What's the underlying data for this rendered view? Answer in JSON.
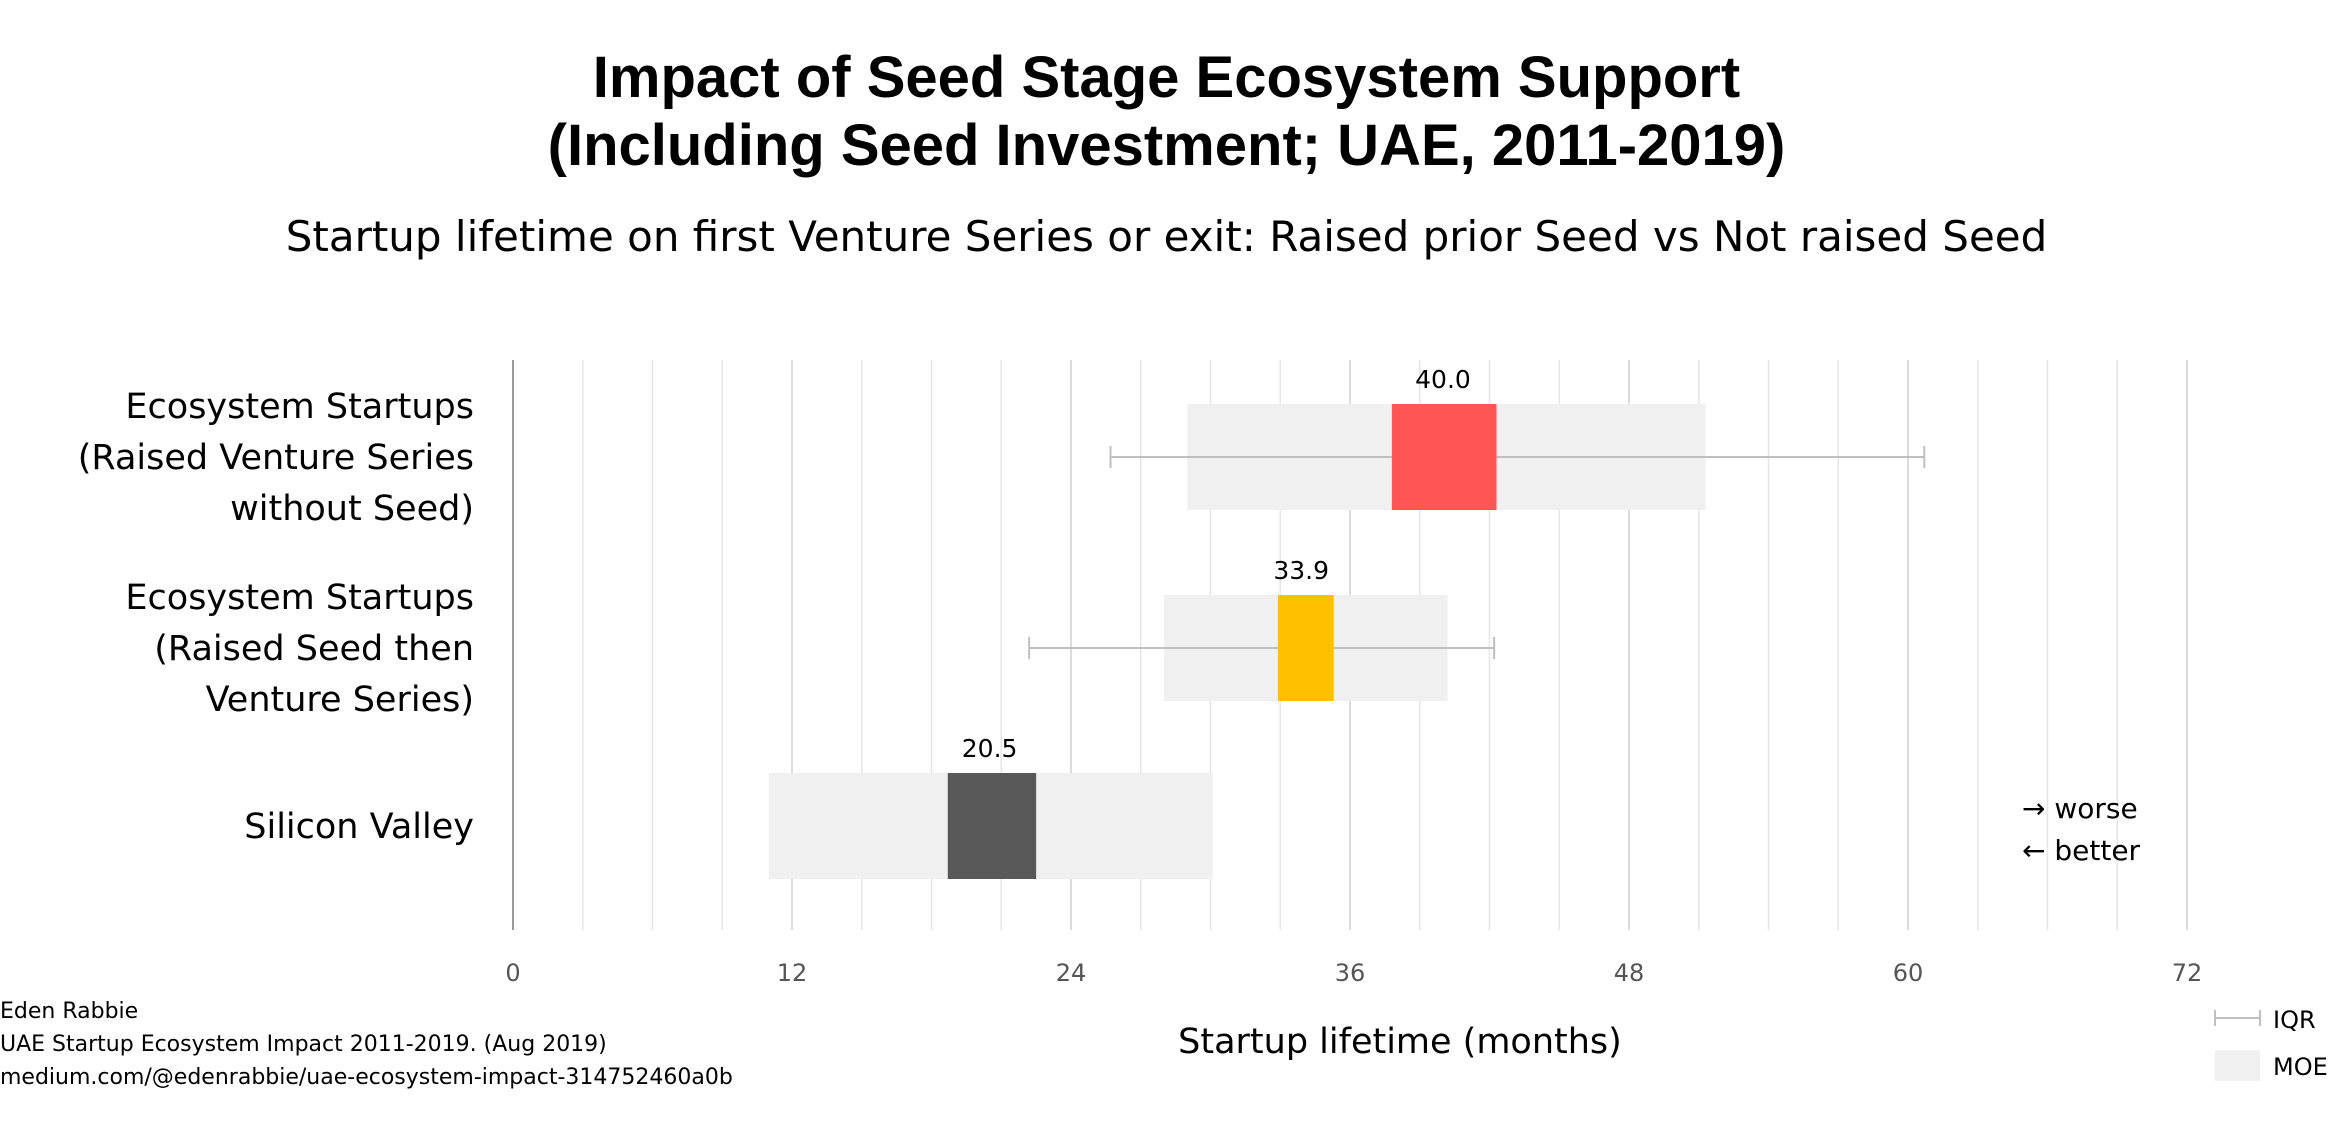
{
  "chart_data": {
    "type": "bar",
    "title_lines": [
      "Impact of Seed Stage Ecosystem Support",
      "(Including Seed Investment; UAE, 2011-2019)"
    ],
    "subtitle": "Startup lifetime on first Venture Series or exit: Raised prior Seed vs Not raised Seed",
    "xlabel": "Startup lifetime (months)",
    "xlim": [
      0,
      72
    ],
    "xticks": [
      0,
      12,
      24,
      36,
      48,
      60,
      72
    ],
    "minor_grid_step": 3,
    "grid": true,
    "categories": [
      {
        "label_lines": [
          "Ecosystem Startups",
          "(Raised Venture Series",
          "without Seed)"
        ],
        "value": 40.0,
        "value_label": "40.0",
        "median_band": [
          37.8,
          42.3
        ],
        "moe": [
          29,
          51.3
        ],
        "iqr": [
          25.7,
          60.7
        ],
        "color": "#ff5555"
      },
      {
        "label_lines": [
          "Ecosystem Startups",
          "(Raised Seed then",
          "Venture Series)"
        ],
        "value": 33.9,
        "value_label": "33.9",
        "median_band": [
          32.9,
          35.3
        ],
        "moe": [
          28,
          40.2
        ],
        "iqr": [
          22.2,
          42.2
        ],
        "color": "#ffc000"
      },
      {
        "label_lines": [
          "Silicon Valley"
        ],
        "value": 20.5,
        "value_label": "20.5",
        "median_band": [
          18.7,
          22.5
        ],
        "moe": [
          11,
          30.1
        ],
        "iqr": null,
        "color": "#595959"
      }
    ],
    "notes": [
      "→ worse",
      "← better"
    ],
    "legend": {
      "position": "bottom-right",
      "items": [
        {
          "label": "IQR",
          "marker": "whisker"
        },
        {
          "label": "MOE",
          "marker": "band"
        }
      ]
    },
    "colors": {
      "moe_band": "#f1f0f1",
      "whisker": "#bfbfbf",
      "grid": "#e6e6e6",
      "axis": "#999999"
    }
  },
  "credits": [
    "Eden Rabbie",
    "UAE Startup Ecosystem Impact 2011-2019. (Aug 2019)",
    "medium.com/@edenrabbie/uae-ecosystem-impact-314752460a0b"
  ]
}
